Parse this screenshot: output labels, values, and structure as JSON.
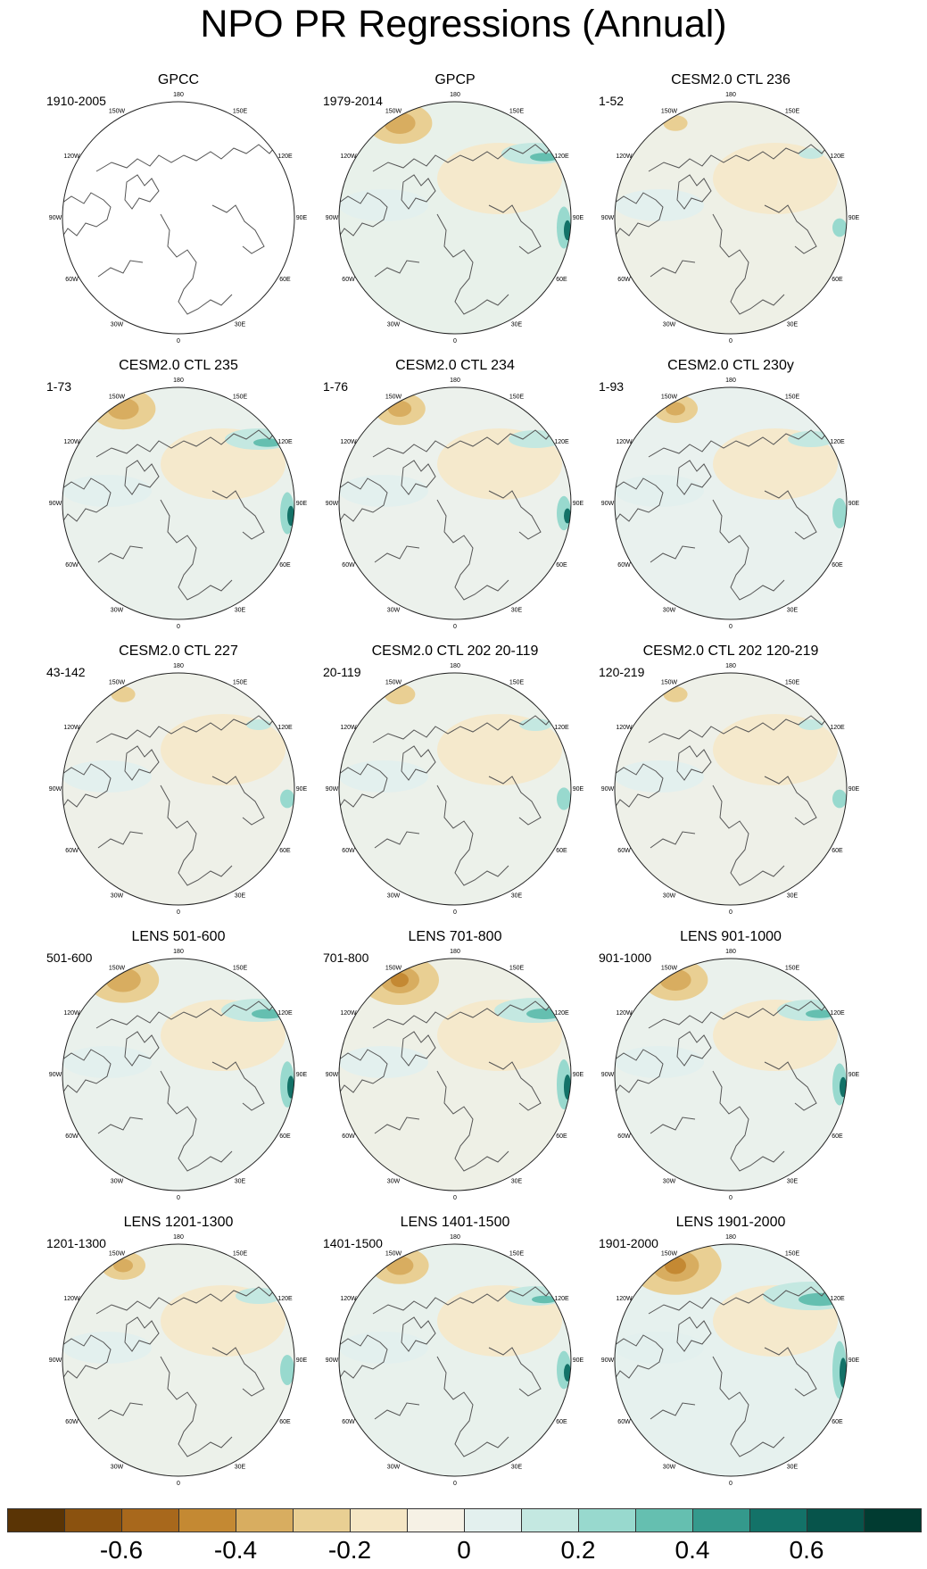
{
  "title": "NPO PR Regressions (Annual)",
  "lon_labels": {
    "l180": "180",
    "l150e": "150E",
    "l120e": "120E",
    "l90e": "90E",
    "l60e": "60E",
    "l30e": "30E",
    "l0": "0",
    "l30w": "30W",
    "l60w": "60W",
    "l90w": "90W",
    "l120w": "120W",
    "l150w": "150W"
  },
  "panels": [
    {
      "title": "GPCC",
      "period": "1910-2005",
      "blob": 0.0,
      "tint": "#ffffff"
    },
    {
      "title": "GPCP",
      "period": "1979-2014",
      "blob": 0.8,
      "tint": "#e8f1ea"
    },
    {
      "title": "CESM2.0 CTL 236",
      "period": "1-52",
      "blob": 0.2,
      "tint": "#eef0e6"
    },
    {
      "title": "CESM2.0 CTL 235",
      "period": "1-73",
      "blob": 0.8,
      "tint": "#eaf1ec"
    },
    {
      "title": "CESM2.0 CTL 234",
      "period": "1-76",
      "blob": 0.6,
      "tint": "#ecf1ec"
    },
    {
      "title": "CESM2.0 CTL 230y",
      "period": "1-93",
      "blob": 0.5,
      "tint": "#e9f1ee"
    },
    {
      "title": "CESM2.0 CTL 227",
      "period": "43-142",
      "blob": 0.2,
      "tint": "#eef0e8"
    },
    {
      "title": "CESM2.0 CTL 202 20-119",
      "period": "20-119",
      "blob": 0.3,
      "tint": "#ecf1ea"
    },
    {
      "title": "CESM2.0 CTL 202 120-219",
      "period": "120-219",
      "blob": 0.2,
      "tint": "#eef0e8"
    },
    {
      "title": "LENS 501-600",
      "period": "501-600",
      "blob": 0.9,
      "tint": "#eaf1ec"
    },
    {
      "title": "LENS 701-800",
      "period": "701-800",
      "blob": 1.0,
      "tint": "#eef0e6"
    },
    {
      "title": "LENS 901-1000",
      "period": "901-1000",
      "blob": 0.8,
      "tint": "#eaf1ec"
    },
    {
      "title": "LENS 1201-1300",
      "period": "1201-1300",
      "blob": 0.5,
      "tint": "#ecf1ea"
    },
    {
      "title": "LENS 1401-1500",
      "period": "1401-1500",
      "blob": 0.7,
      "tint": "#e8f1ec"
    },
    {
      "title": "LENS 1901-2000",
      "period": "1901-2000",
      "blob": 1.2,
      "tint": "#e6f1ee"
    }
  ],
  "colorbar": {
    "colors": [
      "#5a3405",
      "#8b520f",
      "#a8681c",
      "#c48933",
      "#d8ad60",
      "#e9cf93",
      "#f5e6c4",
      "#f6f1e5",
      "#e3f0ee",
      "#c4e8e1",
      "#98d9ce",
      "#65bfb0",
      "#34998c",
      "#137268",
      "#07544b",
      "#013b31"
    ],
    "ticks": [
      "-0.6",
      "-0.4",
      "-0.2",
      "0",
      "0.2",
      "0.4",
      "0.6"
    ],
    "tick_values": [
      -0.6,
      -0.4,
      -0.2,
      0,
      0.2,
      0.4,
      0.6
    ],
    "min": -0.8,
    "max": 0.8
  }
}
